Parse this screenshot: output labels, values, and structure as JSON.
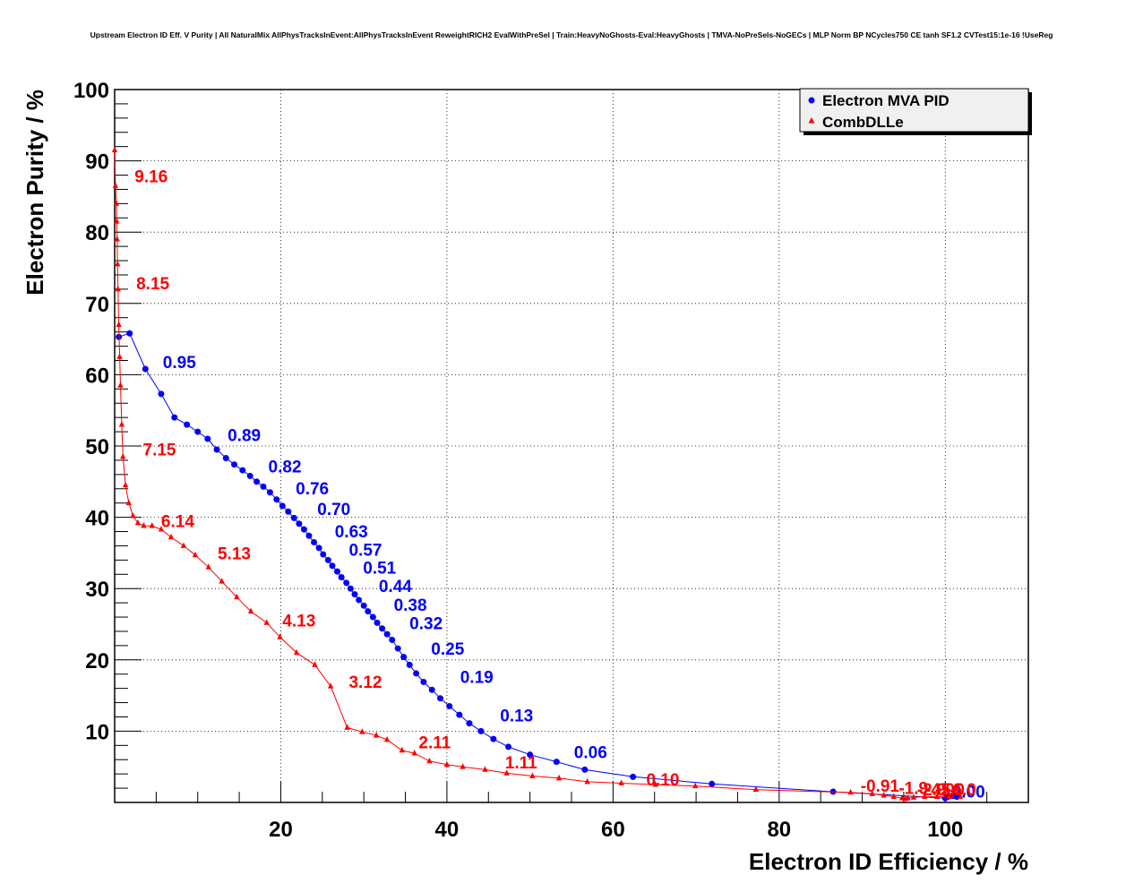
{
  "chart_data": {
    "type": "scatter",
    "title": "Upstream Electron ID Eff. V Purity | All NaturalMix AllPhysTracksInEvent:AllPhysTracksInEvent ReweightRICH2 EvalWithPreSel | Train:HeavyNoGhosts-Eval:HeavyGhosts | TMVA-NoPreSels-NoGECs | MLP Norm BP NCycles750 CE tanh SF1.2 CVTest15:1e-16 !UseReg",
    "xlabel": "Electron ID Efficiency / %",
    "ylabel": "Electron Purity / %",
    "xlim": [
      0,
      110
    ],
    "ylim": [
      0,
      100
    ],
    "xticks": [
      20,
      40,
      60,
      80,
      100
    ],
    "yticks": [
      10,
      20,
      30,
      40,
      50,
      60,
      70,
      80,
      90,
      100
    ],
    "grid": true,
    "legend_position": "top-right",
    "colors": {
      "mva": "#0000ff",
      "dll": "#ff0000"
    },
    "series": [
      {
        "name": "Electron MVA PID",
        "marker": "circle",
        "color": "#0000ff",
        "points": [
          [
            0.5,
            65.3
          ],
          [
            1.8,
            65.8
          ],
          [
            3.7,
            60.8
          ],
          [
            5.6,
            57.3
          ],
          [
            7.2,
            54.0
          ],
          [
            8.7,
            53.0
          ],
          [
            10.0,
            52.0
          ],
          [
            11.2,
            51.0
          ],
          [
            12.3,
            49.5
          ],
          [
            13.4,
            48.3
          ],
          [
            14.4,
            47.4
          ],
          [
            15.4,
            46.6
          ],
          [
            16.3,
            45.8
          ],
          [
            17.1,
            45.0
          ],
          [
            17.9,
            44.3
          ],
          [
            18.7,
            43.5
          ],
          [
            19.5,
            42.5
          ],
          [
            20.2,
            41.6
          ],
          [
            20.9,
            40.8
          ],
          [
            21.6,
            39.9
          ],
          [
            22.2,
            39.1
          ],
          [
            22.8,
            38.3
          ],
          [
            23.4,
            37.4
          ],
          [
            24.0,
            36.5
          ],
          [
            24.6,
            35.7
          ],
          [
            25.1,
            34.8
          ],
          [
            25.7,
            34.0
          ],
          [
            26.2,
            33.2
          ],
          [
            26.8,
            32.4
          ],
          [
            27.3,
            31.6
          ],
          [
            27.9,
            30.8
          ],
          [
            28.4,
            30.0
          ],
          [
            28.9,
            29.2
          ],
          [
            29.4,
            28.4
          ],
          [
            30.0,
            27.6
          ],
          [
            30.5,
            26.8
          ],
          [
            31.1,
            26.0
          ],
          [
            31.6,
            25.2
          ],
          [
            32.2,
            24.4
          ],
          [
            32.8,
            23.6
          ],
          [
            33.4,
            22.8
          ],
          [
            34.1,
            21.6
          ],
          [
            34.8,
            20.4
          ],
          [
            35.5,
            19.3
          ],
          [
            36.3,
            18.1
          ],
          [
            37.2,
            16.9
          ],
          [
            38.2,
            15.8
          ],
          [
            39.2,
            14.6
          ],
          [
            40.3,
            13.5
          ],
          [
            41.5,
            12.3
          ],
          [
            42.7,
            11.1
          ],
          [
            44.1,
            10.0
          ],
          [
            45.6,
            8.9
          ],
          [
            47.4,
            7.8
          ],
          [
            50.0,
            6.7
          ],
          [
            53.2,
            5.7
          ],
          [
            56.6,
            4.6
          ],
          [
            62.4,
            3.6
          ],
          [
            71.9,
            2.6
          ],
          [
            86.5,
            1.5
          ],
          [
            100.0,
            0.6
          ],
          [
            100.3,
            0.8
          ],
          [
            100.6,
            0.9
          ],
          [
            101.0,
            0.9
          ],
          [
            101.4,
            0.8
          ]
        ]
      },
      {
        "name": "CombDLLe",
        "marker": "triangle",
        "color": "#ff0000",
        "points": [
          [
            0.0,
            91.5
          ],
          [
            0.1,
            86.5
          ],
          [
            0.2,
            84.0
          ],
          [
            0.25,
            81.5
          ],
          [
            0.3,
            79.0
          ],
          [
            0.35,
            75.5
          ],
          [
            0.4,
            72.0
          ],
          [
            0.5,
            67.0
          ],
          [
            0.6,
            62.5
          ],
          [
            0.7,
            58.5
          ],
          [
            0.85,
            53.0
          ],
          [
            1.0,
            48.5
          ],
          [
            1.3,
            44.5
          ],
          [
            1.7,
            42.0
          ],
          [
            2.2,
            40.2
          ],
          [
            2.8,
            39.2
          ],
          [
            3.5,
            38.8
          ],
          [
            4.5,
            38.8
          ],
          [
            5.6,
            38.3
          ],
          [
            6.8,
            37.2
          ],
          [
            8.3,
            36.0
          ],
          [
            9.7,
            34.7
          ],
          [
            11.3,
            33.0
          ],
          [
            12.9,
            31.0
          ],
          [
            14.7,
            28.8
          ],
          [
            16.4,
            26.8
          ],
          [
            18.3,
            25.2
          ],
          [
            19.9,
            23.2
          ],
          [
            21.9,
            21.0
          ],
          [
            24.1,
            19.3
          ],
          [
            26.0,
            16.3
          ],
          [
            28.0,
            10.5
          ],
          [
            29.8,
            9.9
          ],
          [
            31.5,
            9.4
          ],
          [
            32.8,
            8.8
          ],
          [
            34.6,
            7.3
          ],
          [
            36.1,
            6.9
          ],
          [
            37.9,
            5.8
          ],
          [
            40.0,
            5.3
          ],
          [
            41.9,
            5.0
          ],
          [
            44.6,
            4.6
          ],
          [
            47.2,
            4.1
          ],
          [
            50.3,
            3.7
          ],
          [
            53.5,
            3.4
          ],
          [
            56.9,
            2.9
          ],
          [
            61.0,
            2.7
          ],
          [
            65.1,
            2.5
          ],
          [
            69.9,
            2.3
          ],
          [
            77.2,
            1.8
          ],
          [
            88.6,
            1.4
          ],
          [
            91.2,
            1.2
          ],
          [
            92.6,
            1.0
          ],
          [
            93.8,
            0.8
          ],
          [
            94.8,
            0.6
          ],
          [
            95.2,
            0.5
          ],
          [
            95.5,
            0.6
          ],
          [
            96.2,
            0.7
          ],
          [
            97.5,
            0.8
          ],
          [
            99.0,
            0.8
          ],
          [
            100.5,
            0.8
          ],
          [
            101.8,
            0.8
          ]
        ]
      }
    ],
    "annotations": [
      {
        "text": "0.95",
        "x": 5.8,
        "y": 60.9,
        "series": "Electron MVA PID"
      },
      {
        "text": "0.89",
        "x": 13.6,
        "y": 50.7,
        "series": "Electron MVA PID"
      },
      {
        "text": "0.82",
        "x": 18.5,
        "y": 46.3,
        "series": "Electron MVA PID"
      },
      {
        "text": "0.76",
        "x": 21.8,
        "y": 43.2,
        "series": "Electron MVA PID"
      },
      {
        "text": "0.70",
        "x": 24.4,
        "y": 40.3,
        "series": "Electron MVA PID"
      },
      {
        "text": "0.63",
        "x": 26.5,
        "y": 37.2,
        "series": "Electron MVA PID"
      },
      {
        "text": "0.57",
        "x": 28.2,
        "y": 34.6,
        "series": "Electron MVA PID"
      },
      {
        "text": "0.51",
        "x": 29.9,
        "y": 32.1,
        "series": "Electron MVA PID"
      },
      {
        "text": "0.44",
        "x": 31.8,
        "y": 29.5,
        "series": "Electron MVA PID"
      },
      {
        "text": "0.38",
        "x": 33.6,
        "y": 26.9,
        "series": "Electron MVA PID"
      },
      {
        "text": "0.32",
        "x": 35.5,
        "y": 24.3,
        "series": "Electron MVA PID"
      },
      {
        "text": "0.25",
        "x": 38.1,
        "y": 20.7,
        "series": "Electron MVA PID"
      },
      {
        "text": "0.19",
        "x": 41.6,
        "y": 16.8,
        "series": "Electron MVA PID"
      },
      {
        "text": "0.13",
        "x": 46.4,
        "y": 11.4,
        "series": "Electron MVA PID"
      },
      {
        "text": "0.06",
        "x": 55.3,
        "y": 6.2,
        "series": "Electron MVA PID"
      },
      {
        "text": "0.00",
        "x": 100.8,
        "y": 0.7,
        "series": "Electron MVA PID"
      },
      {
        "text": "9.16",
        "x": 2.4,
        "y": 87.0,
        "series": "CombDLLe"
      },
      {
        "text": "8.15",
        "x": 2.6,
        "y": 72.0,
        "series": "CombDLLe"
      },
      {
        "text": "7.15",
        "x": 3.4,
        "y": 48.7,
        "series": "CombDLLe"
      },
      {
        "text": "6.14",
        "x": 5.6,
        "y": 38.6,
        "series": "CombDLLe"
      },
      {
        "text": "5.13",
        "x": 12.4,
        "y": 34.1,
        "series": "CombDLLe"
      },
      {
        "text": "4.13",
        "x": 20.2,
        "y": 24.7,
        "series": "CombDLLe"
      },
      {
        "text": "3.12",
        "x": 28.2,
        "y": 16.1,
        "series": "CombDLLe"
      },
      {
        "text": "2.11",
        "x": 36.6,
        "y": 7.6,
        "series": "CombDLLe"
      },
      {
        "text": "1.11",
        "x": 47.0,
        "y": 4.8,
        "series": "CombDLLe"
      },
      {
        "text": "0.10",
        "x": 64.0,
        "y": 2.4,
        "series": "CombDLLe"
      },
      {
        "text": "-0.91",
        "x": 89.8,
        "y": 1.5,
        "series": "CombDLLe"
      },
      {
        "text": "-1.9",
        "x": 94.4,
        "y": 1.2,
        "series": "CombDLLe"
      },
      {
        "text": "-2.9",
        "x": 96.6,
        "y": 1.0,
        "series": "CombDLLe"
      },
      {
        "text": "-4.0",
        "x": 97.6,
        "y": 1.0,
        "series": "CombDLLe"
      },
      {
        "text": "-5.0",
        "x": 98.8,
        "y": 1.0,
        "series": "CombDLLe"
      },
      {
        "text": "-6.0",
        "x": 100.2,
        "y": 1.0,
        "series": "CombDLLe"
      }
    ]
  }
}
